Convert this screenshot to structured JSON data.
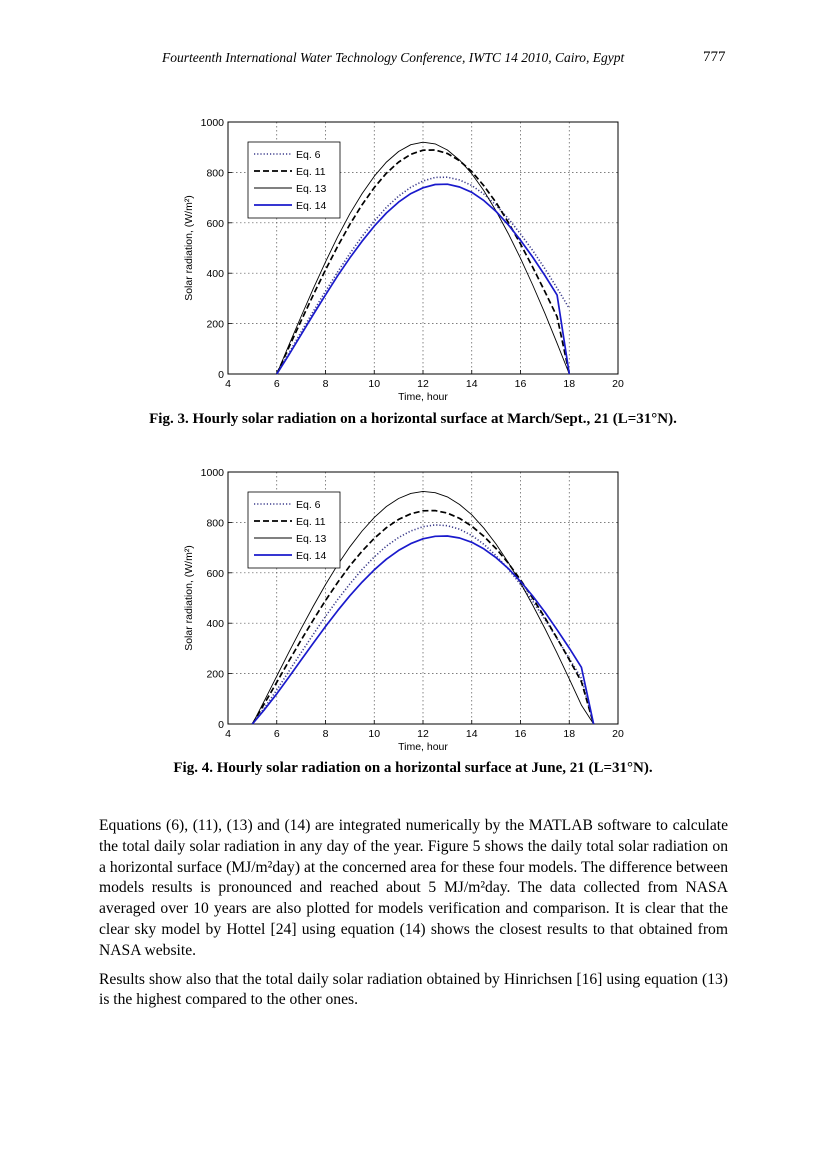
{
  "header": {
    "conference": "Fourteenth International Water Technology Conference, IWTC 14 2010, Cairo, Egypt",
    "page_number": "777"
  },
  "chart_data": [
    {
      "type": "line",
      "xlabel": "Time, hour",
      "ylabel": "Solar radiation, (W/m²)",
      "xlim": [
        4,
        20
      ],
      "ylim": [
        0,
        1000
      ],
      "xticks": [
        4,
        6,
        8,
        10,
        12,
        14,
        16,
        18,
        20
      ],
      "yticks": [
        0,
        200,
        400,
        600,
        800,
        1000
      ],
      "grid": true,
      "legend_position": "top-left",
      "series": [
        {
          "name": "Eq. 6",
          "color": "#3a3a8a",
          "style": "dotted",
          "x": [
            6,
            6.5,
            7,
            7.5,
            8,
            8.5,
            9,
            9.5,
            10,
            10.5,
            11,
            11.5,
            12,
            12.5,
            13,
            13.5,
            14,
            14.5,
            15,
            15.5,
            16,
            16.5,
            17,
            17.5,
            18
          ],
          "y": [
            0,
            83,
            167,
            249,
            328,
            405,
            478,
            546,
            607,
            661,
            706,
            741,
            766,
            780,
            781,
            770,
            748,
            714,
            670,
            617,
            556,
            490,
            418,
            341,
            260
          ]
        },
        {
          "name": "Eq. 11",
          "color": "#000000",
          "style": "dashed",
          "x": [
            6,
            6.5,
            7,
            7.5,
            8,
            8.5,
            9,
            9.5,
            10,
            10.5,
            11,
            11.5,
            12,
            12.5,
            13,
            13.5,
            14,
            14.5,
            15,
            15.5,
            16,
            16.5,
            17,
            17.5,
            18
          ],
          "y": [
            0,
            106,
            211,
            314,
            413,
            507,
            594,
            672,
            740,
            797,
            841,
            872,
            888,
            889,
            875,
            846,
            803,
            747,
            680,
            602,
            516,
            424,
            327,
            227,
            0
          ]
        },
        {
          "name": "Eq. 13",
          "color": "#000000",
          "style": "solid-thin",
          "x": [
            6,
            6.5,
            7,
            7.5,
            8,
            8.5,
            9,
            9.5,
            10,
            10.5,
            11,
            11.5,
            12,
            12.5,
            13,
            13.5,
            14,
            14.5,
            15,
            15.5,
            16,
            16.5,
            17,
            17.5,
            18
          ],
          "y": [
            0,
            115,
            228,
            339,
            445,
            545,
            636,
            716,
            785,
            841,
            883,
            910,
            920,
            913,
            889,
            849,
            795,
            727,
            647,
            557,
            459,
            353,
            241,
            122,
            0
          ]
        },
        {
          "name": "Eq. 14",
          "color": "#1a1acc",
          "style": "solid",
          "x": [
            6,
            6.5,
            7,
            7.5,
            8,
            8.5,
            9,
            9.5,
            10,
            10.5,
            11,
            11.5,
            12,
            12.5,
            13,
            13.5,
            14,
            14.5,
            15,
            15.5,
            16,
            16.5,
            17,
            17.5,
            18
          ],
          "y": [
            0,
            76,
            156,
            236,
            314,
            390,
            461,
            527,
            587,
            639,
            682,
            716,
            739,
            752,
            753,
            742,
            721,
            688,
            645,
            592,
            531,
            464,
            391,
            313,
            0
          ]
        }
      ]
    },
    {
      "type": "line",
      "xlabel": "Time, hour",
      "ylabel": "Solar radiation, (W/m²)",
      "xlim": [
        4,
        20
      ],
      "ylim": [
        0,
        1000
      ],
      "xticks": [
        4,
        6,
        8,
        10,
        12,
        14,
        16,
        18,
        20
      ],
      "yticks": [
        0,
        200,
        400,
        600,
        800,
        1000
      ],
      "grid": true,
      "legend_position": "top-left",
      "series": [
        {
          "name": "Eq. 6",
          "color": "#3a3a8a",
          "style": "dotted",
          "x": [
            5,
            5.5,
            6,
            6.5,
            7,
            7.5,
            8,
            8.5,
            9,
            9.5,
            10,
            10.5,
            11,
            11.5,
            12,
            12.5,
            13,
            13.5,
            14,
            14.5,
            15,
            15.5,
            16,
            16.5,
            17,
            17.5,
            18,
            18.5,
            19
          ],
          "y": [
            0,
            65,
            135,
            209,
            283,
            356,
            427,
            494,
            556,
            613,
            663,
            706,
            740,
            766,
            783,
            790,
            787,
            773,
            748,
            713,
            668,
            615,
            554,
            487,
            415,
            339,
            260,
            181,
            0
          ]
        },
        {
          "name": "Eq. 11",
          "color": "#000000",
          "style": "dashed",
          "x": [
            5,
            5.5,
            6,
            6.5,
            7,
            7.5,
            8,
            8.5,
            9,
            9.5,
            10,
            10.5,
            11,
            11.5,
            12,
            12.5,
            13,
            13.5,
            14,
            14.5,
            15,
            15.5,
            16,
            16.5,
            17,
            17.5,
            18,
            18.5,
            19
          ],
          "y": [
            0,
            82,
            166,
            250,
            333,
            413,
            490,
            562,
            628,
            686,
            737,
            779,
            812,
            834,
            846,
            847,
            837,
            816,
            785,
            745,
            696,
            638,
            572,
            500,
            422,
            340,
            255,
            168,
            0
          ]
        },
        {
          "name": "Eq. 13",
          "color": "#000000",
          "style": "solid-thin",
          "x": [
            5,
            5.5,
            6,
            6.5,
            7,
            7.5,
            8,
            8.5,
            9,
            9.5,
            10,
            10.5,
            11,
            11.5,
            12,
            12.5,
            13,
            13.5,
            14,
            14.5,
            15,
            15.5,
            16,
            16.5,
            17,
            17.5,
            18,
            18.5,
            19
          ],
          "y": [
            0,
            94,
            190,
            285,
            378,
            468,
            553,
            632,
            703,
            766,
            820,
            863,
            895,
            915,
            923,
            918,
            901,
            871,
            830,
            777,
            714,
            641,
            560,
            472,
            379,
            281,
            179,
            75,
            0
          ]
        },
        {
          "name": "Eq. 14",
          "color": "#1a1acc",
          "style": "solid",
          "x": [
            5,
            5.5,
            6,
            6.5,
            7,
            7.5,
            8,
            8.5,
            9,
            9.5,
            10,
            10.5,
            11,
            11.5,
            12,
            12.5,
            13,
            13.5,
            14,
            14.5,
            15,
            15.5,
            16,
            16.5,
            17,
            17.5,
            18,
            18.5,
            19
          ],
          "y": [
            0,
            58,
            120,
            186,
            254,
            321,
            387,
            450,
            509,
            563,
            612,
            654,
            689,
            716,
            735,
            745,
            746,
            738,
            721,
            695,
            660,
            617,
            566,
            508,
            444,
            374,
            301,
            225,
            0
          ]
        }
      ]
    }
  ],
  "captions": {
    "fig3": "Fig. 3. Hourly solar radiation on a horizontal surface at March/Sept., 21 (L=31°N).",
    "fig4": "Fig. 4. Hourly solar radiation on a horizontal surface at June, 21 (L=31°N)."
  },
  "body": {
    "p1": "Equations (6), (11), (13) and (14) are integrated numerically by the MATLAB software to calculate the total daily solar radiation in any day of the year. Figure 5 shows the daily total solar radiation on a horizontal surface (MJ/m²day) at the concerned area for these four models. The difference between models results is pronounced and reached about 5 MJ/m²day. The data collected from NASA averaged over 10 years are also plotted for models verification and comparison. It is clear that the clear sky model by Hottel [24] using equation (14) shows the closest results to that obtained from NASA website.",
    "p2": "Results show also that the total daily solar radiation obtained by Hinrichsen [16] using equation (13) is the highest compared to the other ones."
  }
}
